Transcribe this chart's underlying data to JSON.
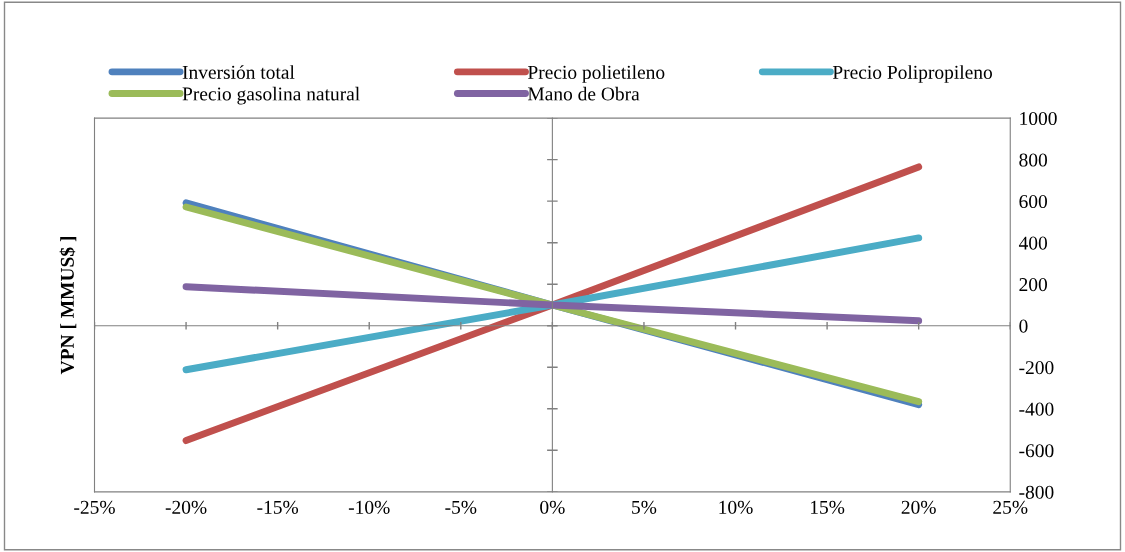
{
  "chart_data": {
    "type": "line",
    "ylabel": "VPN [ MMUS$ ]",
    "x": [
      -20,
      0,
      20
    ],
    "series": [
      {
        "name": "Inversión total",
        "color": "#4f81bd",
        "values": [
          592,
          100,
          -380
        ]
      },
      {
        "name": "Precio polietileno",
        "color": "#c0504d",
        "values": [
          -553,
          100,
          765
        ]
      },
      {
        "name": "Precio Polipropileno",
        "color": "#4bacc6",
        "values": [
          -212,
          100,
          423
        ]
      },
      {
        "name": "Precio gasolina natural",
        "color": "#9bbb59",
        "values": [
          572,
          100,
          -366
        ]
      },
      {
        "name": "Mano de Obra",
        "color": "#8064a2",
        "values": [
          188,
          100,
          24
        ]
      }
    ],
    "xlim": [
      -25,
      25
    ],
    "xticks": [
      {
        "value": -25,
        "label": "-25%"
      },
      {
        "value": -20,
        "label": "-20%"
      },
      {
        "value": -15,
        "label": "-15%"
      },
      {
        "value": -10,
        "label": "-10%"
      },
      {
        "value": -5,
        "label": "-5%"
      },
      {
        "value": 0,
        "label": "0%"
      },
      {
        "value": 5,
        "label": "5%"
      },
      {
        "value": 10,
        "label": "10%"
      },
      {
        "value": 15,
        "label": "15%"
      },
      {
        "value": 20,
        "label": "20%"
      },
      {
        "value": 25,
        "label": "25%"
      }
    ],
    "ylim": [
      -800,
      1000
    ],
    "yticks": [
      -800,
      -600,
      -400,
      -200,
      0,
      200,
      400,
      600,
      800,
      1000
    ],
    "legend": "top",
    "marker": "none",
    "line_style": "solid"
  }
}
